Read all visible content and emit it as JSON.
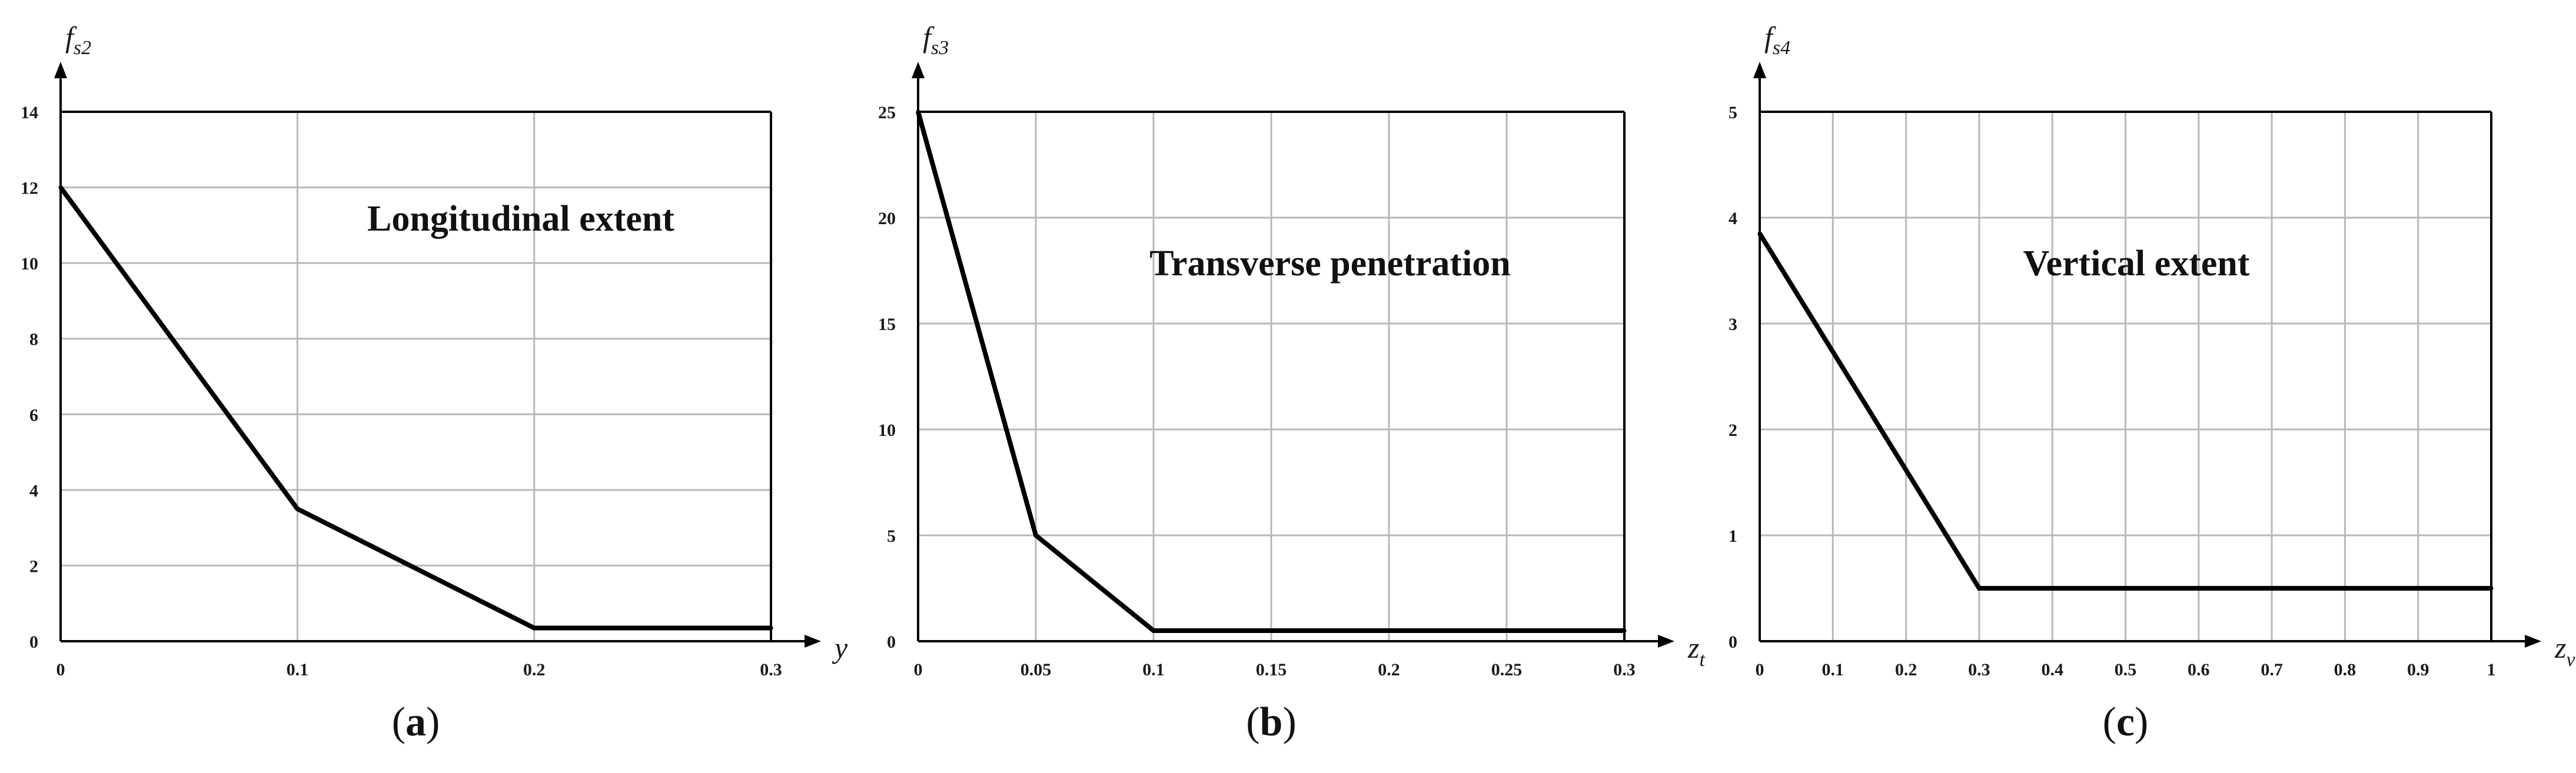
{
  "colors": {
    "line": "#000000",
    "grid": "#b8b8b8",
    "frame": "#000000",
    "text": "#1a1a1a"
  },
  "chart_data": [
    {
      "type": "line",
      "panel": "a",
      "annotation": "Longitudinal extent",
      "ylabel": {
        "base": "f",
        "sub": "s2"
      },
      "xlabel": {
        "base": "y",
        "sub": ""
      },
      "xlim": [
        0,
        0.3
      ],
      "ylim": [
        0,
        14
      ],
      "x_ticks": [
        0,
        0.1,
        0.2,
        0.3
      ],
      "x_tick_labels": [
        "0",
        "0.1",
        "0.2",
        "0.3"
      ],
      "y_ticks": [
        0,
        2,
        4,
        6,
        8,
        10,
        12,
        14
      ],
      "y_tick_labels": [
        "0",
        "2",
        "4",
        "6",
        "8",
        "10",
        "12",
        "14"
      ],
      "grid": true,
      "series": [
        {
          "x": [
            0,
            0.1,
            0.2,
            0.3
          ],
          "y": [
            12,
            3.5,
            0.35,
            0.35
          ]
        }
      ]
    },
    {
      "type": "line",
      "panel": "b",
      "annotation": "Transverse penetration",
      "ylabel": {
        "base": "f",
        "sub": "s3"
      },
      "xlabel": {
        "base": "z",
        "sub": "t"
      },
      "xlim": [
        0,
        0.3
      ],
      "ylim": [
        0,
        25
      ],
      "x_ticks": [
        0,
        0.05,
        0.1,
        0.15,
        0.2,
        0.25,
        0.3
      ],
      "x_tick_labels": [
        "0",
        "0.05",
        "0.1",
        "0.15",
        "0.2",
        "0.25",
        "0.3"
      ],
      "y_ticks": [
        0,
        5,
        10,
        15,
        20,
        25
      ],
      "y_tick_labels": [
        "0",
        "5",
        "10",
        "15",
        "20",
        "25"
      ],
      "grid": true,
      "series": [
        {
          "x": [
            0,
            0.05,
            0.1,
            0.3
          ],
          "y": [
            25,
            5,
            0.5,
            0.5
          ]
        }
      ]
    },
    {
      "type": "line",
      "panel": "c",
      "annotation": "Vertical extent",
      "ylabel": {
        "base": "f",
        "sub": "s4"
      },
      "xlabel": {
        "base": "z",
        "sub": "v"
      },
      "xlim": [
        0,
        1
      ],
      "ylim": [
        0,
        5
      ],
      "x_ticks": [
        0,
        0.1,
        0.2,
        0.3,
        0.4,
        0.5,
        0.6,
        0.7,
        0.8,
        0.9,
        1
      ],
      "x_tick_labels": [
        "0",
        "0.1",
        "0.2",
        "0.3",
        "0.4",
        "0.5",
        "0.6",
        "0.7",
        "0.8",
        "0.9",
        "1"
      ],
      "y_ticks": [
        0,
        1,
        2,
        3,
        4,
        5
      ],
      "y_tick_labels": [
        "0",
        "1",
        "2",
        "3",
        "4",
        "5"
      ],
      "grid": true,
      "series": [
        {
          "x": [
            0,
            0.3,
            1
          ],
          "y": [
            3.85,
            0.5,
            0.5
          ]
        }
      ]
    }
  ]
}
